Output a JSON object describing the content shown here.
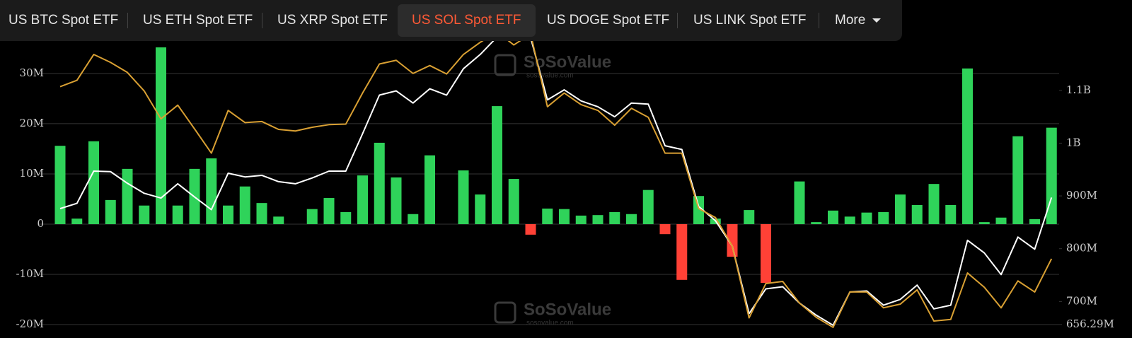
{
  "tabs": [
    {
      "label": "US BTC Spot ETF"
    },
    {
      "label": "US ETH Spot ETF"
    },
    {
      "label": "US XRP Spot ETF"
    },
    {
      "label": "US SOL Spot ETF",
      "active": true
    },
    {
      "label": "US DOGE Spot ETF"
    },
    {
      "label": "US LINK Spot ETF"
    },
    {
      "label": "More"
    }
  ],
  "watermark": "SoSoValue",
  "watermark_url": "sosovalue.com",
  "chart_data": {
    "type": "bar",
    "ylim": [
      -20000000,
      39000000
    ],
    "yticks": [
      {
        "value": -20000000,
        "label": "-20M"
      },
      {
        "value": -10000000,
        "label": "-10M"
      },
      0,
      {
        "value": 10000000,
        "label": "10M"
      },
      {
        "value": 20000000,
        "label": "20M"
      },
      {
        "value": 30000000,
        "label": "30M"
      }
    ],
    "y2lim": [
      656290000,
      1217600000
    ],
    "y2ticks": [
      {
        "value": 656290000,
        "label": "656.29M"
      },
      {
        "value": 700000000,
        "label": "700M"
      },
      {
        "value": 800000000,
        "label": "800M"
      },
      {
        "value": 900000000,
        "label": "900M"
      },
      {
        "value": 1000000000,
        "label": "1B"
      },
      {
        "value": 1100000000,
        "label": "1.1B"
      }
    ],
    "grid": true,
    "series": [
      {
        "type": "bar",
        "color": "#2fd35a",
        "negative_color": "#ff4136",
        "values": [
          15600000,
          1100000,
          16500000,
          4800000,
          11000000,
          3700000,
          35200000,
          3700000,
          11000000,
          13100000,
          3700000,
          7500000,
          4200000,
          1500000,
          0,
          3000000,
          5200000,
          2400000,
          9700000,
          16200000,
          9300000,
          2000000,
          13700000,
          0,
          10700000,
          5900000,
          23500000,
          9000000,
          -2100000,
          3100000,
          3000000,
          1700000,
          1800000,
          2400000,
          2000000,
          6800000,
          -2000000,
          -11100000,
          5600000,
          1100000,
          -6500000,
          2800000,
          -11700000,
          0,
          8500000,
          400000,
          2700000,
          1500000,
          2300000,
          2400000,
          5900000,
          3800000,
          8000000,
          3800000,
          31000000,
          400000,
          1300000,
          17500000,
          1000000,
          19200000
        ]
      },
      {
        "type": "line",
        "axis": "y2",
        "color": "#ffffff",
        "values": [
          876000000,
          886000000,
          947000000,
          946000000,
          924000000,
          905000000,
          896000000,
          923000000,
          898000000,
          874000000,
          943000000,
          936000000,
          939000000,
          927000000,
          923000000,
          934000000,
          947000000,
          947000000,
          1018000000,
          1091000000,
          1099000000,
          1076000000,
          1103000000,
          1091000000,
          1141000000,
          1168000000,
          1201000000,
          1195000000,
          1200000000,
          1082000000,
          1101000000,
          1080000000,
          1069000000,
          1050000000,
          1076000000,
          1074000000,
          995000000,
          988000000,
          880000000,
          853000000,
          805000000,
          677000000,
          724000000,
          728000000,
          697000000,
          674000000,
          655000000,
          718000000,
          720000000,
          693000000,
          704000000,
          731000000,
          686000000,
          693000000,
          816000000,
          792000000,
          751000000,
          822000000,
          799000000,
          897000000
        ]
      },
      {
        "type": "line",
        "axis": "y2",
        "color": "#d9a033",
        "values": [
          1107000000,
          1119000000,
          1168000000,
          1153000000,
          1134000000,
          1099000000,
          1046000000,
          1072000000,
          1027000000,
          981000000,
          1062000000,
          1039000000,
          1041000000,
          1026000000,
          1023000000,
          1030000000,
          1035000000,
          1036000000,
          1095000000,
          1150000000,
          1157000000,
          1132000000,
          1147000000,
          1131000000,
          1168000000,
          1191000000,
          1211000000,
          1186000000,
          1207000000,
          1069000000,
          1095000000,
          1073000000,
          1062000000,
          1034000000,
          1066000000,
          1049000000,
          981000000,
          981000000,
          876000000,
          859000000,
          805000000,
          669000000,
          734000000,
          738000000,
          697000000,
          670000000,
          651000000,
          718000000,
          718000000,
          688000000,
          695000000,
          722000000,
          663000000,
          666000000,
          754000000,
          727000000,
          688000000,
          739000000,
          718000000,
          781000000
        ]
      }
    ]
  }
}
